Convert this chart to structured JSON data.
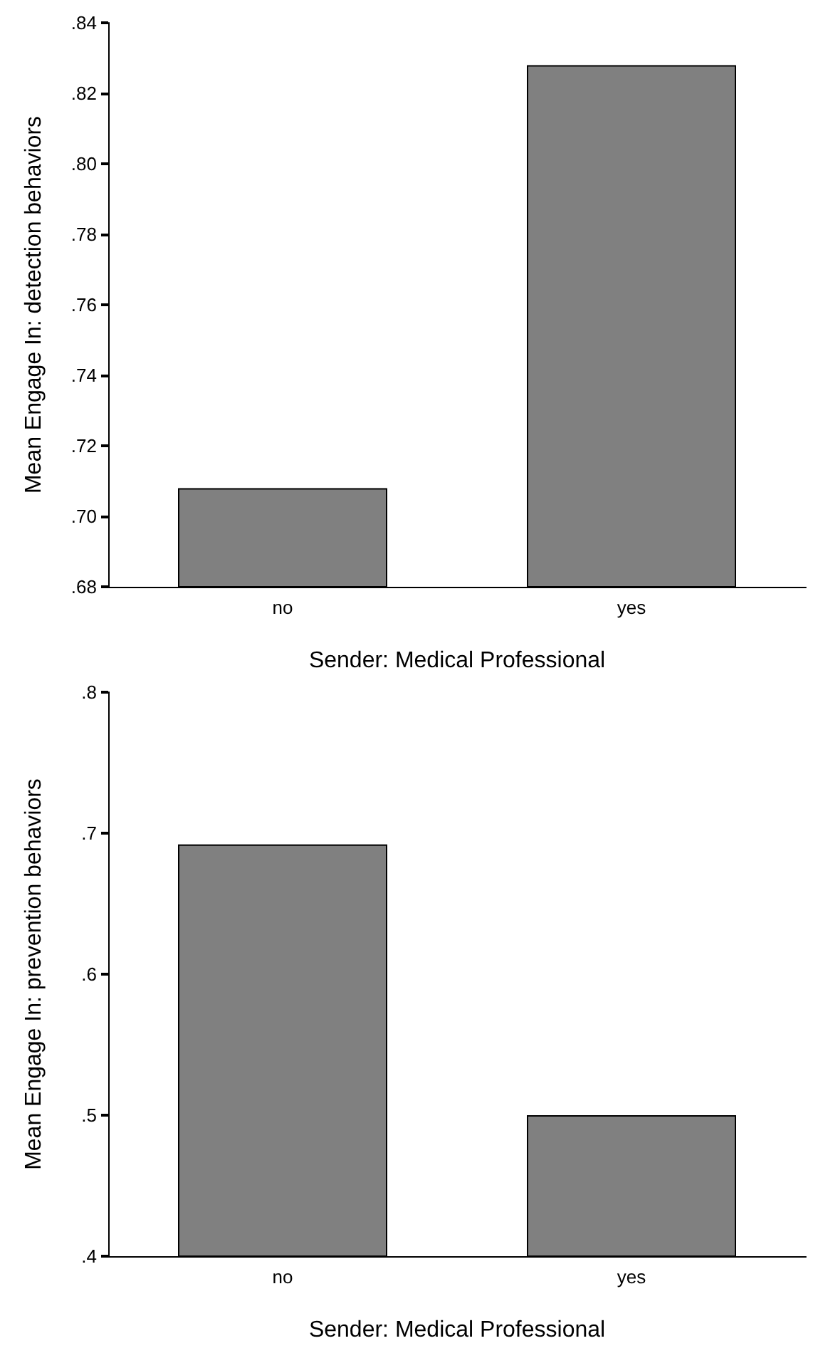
{
  "chart_data": [
    {
      "type": "bar",
      "categories": [
        "no",
        "yes"
      ],
      "values": [
        0.708,
        0.828
      ],
      "color": "#808080",
      "xlabel": "Sender: Medical Professional",
      "ylabel": "Mean Engage In: detection behaviors",
      "ylim": [
        0.68,
        0.84
      ],
      "yticks": [
        {
          "value": 0.68,
          "label": ".68"
        },
        {
          "value": 0.7,
          "label": ".70"
        },
        {
          "value": 0.72,
          "label": ".72"
        },
        {
          "value": 0.74,
          "label": ".74"
        },
        {
          "value": 0.76,
          "label": ".76"
        },
        {
          "value": 0.78,
          "label": ".78"
        },
        {
          "value": 0.8,
          "label": ".80"
        },
        {
          "value": 0.82,
          "label": ".82"
        },
        {
          "value": 0.84,
          "label": ".84"
        }
      ],
      "grid": false
    },
    {
      "type": "bar",
      "categories": [
        "no",
        "yes"
      ],
      "values": [
        0.692,
        0.5
      ],
      "color": "#808080",
      "xlabel": "Sender: Medical Professional",
      "ylabel": "Mean Engage In: prevention behaviors",
      "ylim": [
        0.4,
        0.8
      ],
      "yticks": [
        {
          "value": 0.4,
          "label": ".4"
        },
        {
          "value": 0.5,
          "label": ".5"
        },
        {
          "value": 0.6,
          "label": ".6"
        },
        {
          "value": 0.7,
          "label": ".7"
        },
        {
          "value": 0.8,
          "label": ".8"
        }
      ],
      "grid": false
    }
  ]
}
